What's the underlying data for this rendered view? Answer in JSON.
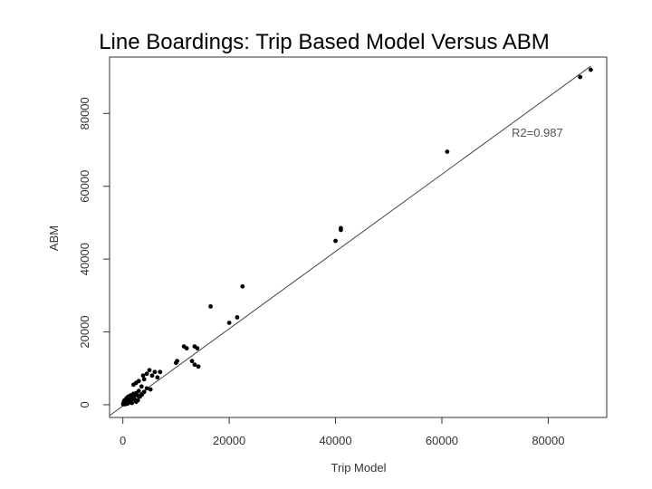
{
  "chart_data": {
    "type": "scatter",
    "title": "Line Boardings: Trip Based Model Versus ABM",
    "xlabel": "Trip Model",
    "ylabel": "ABM",
    "xlim": [
      -2500,
      91000
    ],
    "ylim": [
      -3500,
      95500
    ],
    "x_ticks": [
      0,
      20000,
      40000,
      60000,
      80000
    ],
    "x_tick_labels": [
      "0",
      "20000",
      "40000",
      "60000",
      "80000"
    ],
    "y_ticks": [
      0,
      20000,
      40000,
      60000,
      80000
    ],
    "y_tick_labels": [
      "0",
      "20000",
      "40000",
      "60000",
      "80000"
    ],
    "annotation": "R2=0.987",
    "fit_line": [
      [
        -2500,
        -3000
      ],
      [
        88000,
        93000
      ]
    ],
    "points": [
      [
        88000,
        92000
      ],
      [
        86000,
        90000
      ],
      [
        61000,
        69500
      ],
      [
        41000,
        48000
      ],
      [
        41000,
        48500
      ],
      [
        40000,
        45000
      ],
      [
        22500,
        32500
      ],
      [
        16500,
        27000
      ],
      [
        21500,
        24000
      ],
      [
        20000,
        22500
      ],
      [
        11500,
        16000
      ],
      [
        12000,
        15500
      ],
      [
        13500,
        16000
      ],
      [
        14000,
        15500
      ],
      [
        10000,
        11500
      ],
      [
        10200,
        12000
      ],
      [
        13000,
        12000
      ],
      [
        13500,
        11000
      ],
      [
        14200,
        10500
      ],
      [
        5000,
        9500
      ],
      [
        6000,
        9000
      ],
      [
        7000,
        9000
      ],
      [
        4500,
        8500
      ],
      [
        3800,
        8000
      ],
      [
        5500,
        8000
      ],
      [
        6500,
        7500
      ],
      [
        4000,
        7000
      ],
      [
        3000,
        6500
      ],
      [
        2000,
        5500
      ],
      [
        2500,
        6000
      ],
      [
        3500,
        5000
      ],
      [
        4500,
        4500
      ],
      [
        5200,
        4200
      ],
      [
        4000,
        3500
      ],
      [
        3000,
        3800
      ],
      [
        2500,
        3200
      ],
      [
        2000,
        3000
      ],
      [
        1500,
        2600
      ],
      [
        1000,
        2200
      ],
      [
        1800,
        2000
      ],
      [
        2200,
        1500
      ],
      [
        2800,
        1200
      ],
      [
        3200,
        2200
      ],
      [
        1200,
        1400
      ],
      [
        800,
        1000
      ],
      [
        600,
        800
      ],
      [
        400,
        600
      ],
      [
        200,
        400
      ],
      [
        100,
        200
      ],
      [
        300,
        1200
      ],
      [
        700,
        1800
      ],
      [
        1500,
        1000
      ],
      [
        2500,
        800
      ],
      [
        900,
        300
      ],
      [
        500,
        150
      ],
      [
        1200,
        600
      ],
      [
        1700,
        500
      ],
      [
        2300,
        2600
      ],
      [
        3600,
        2800
      ],
      [
        2900,
        2400
      ],
      [
        1300,
        1900
      ],
      [
        600,
        1500
      ],
      [
        150,
        700
      ],
      [
        50,
        100
      ]
    ]
  }
}
